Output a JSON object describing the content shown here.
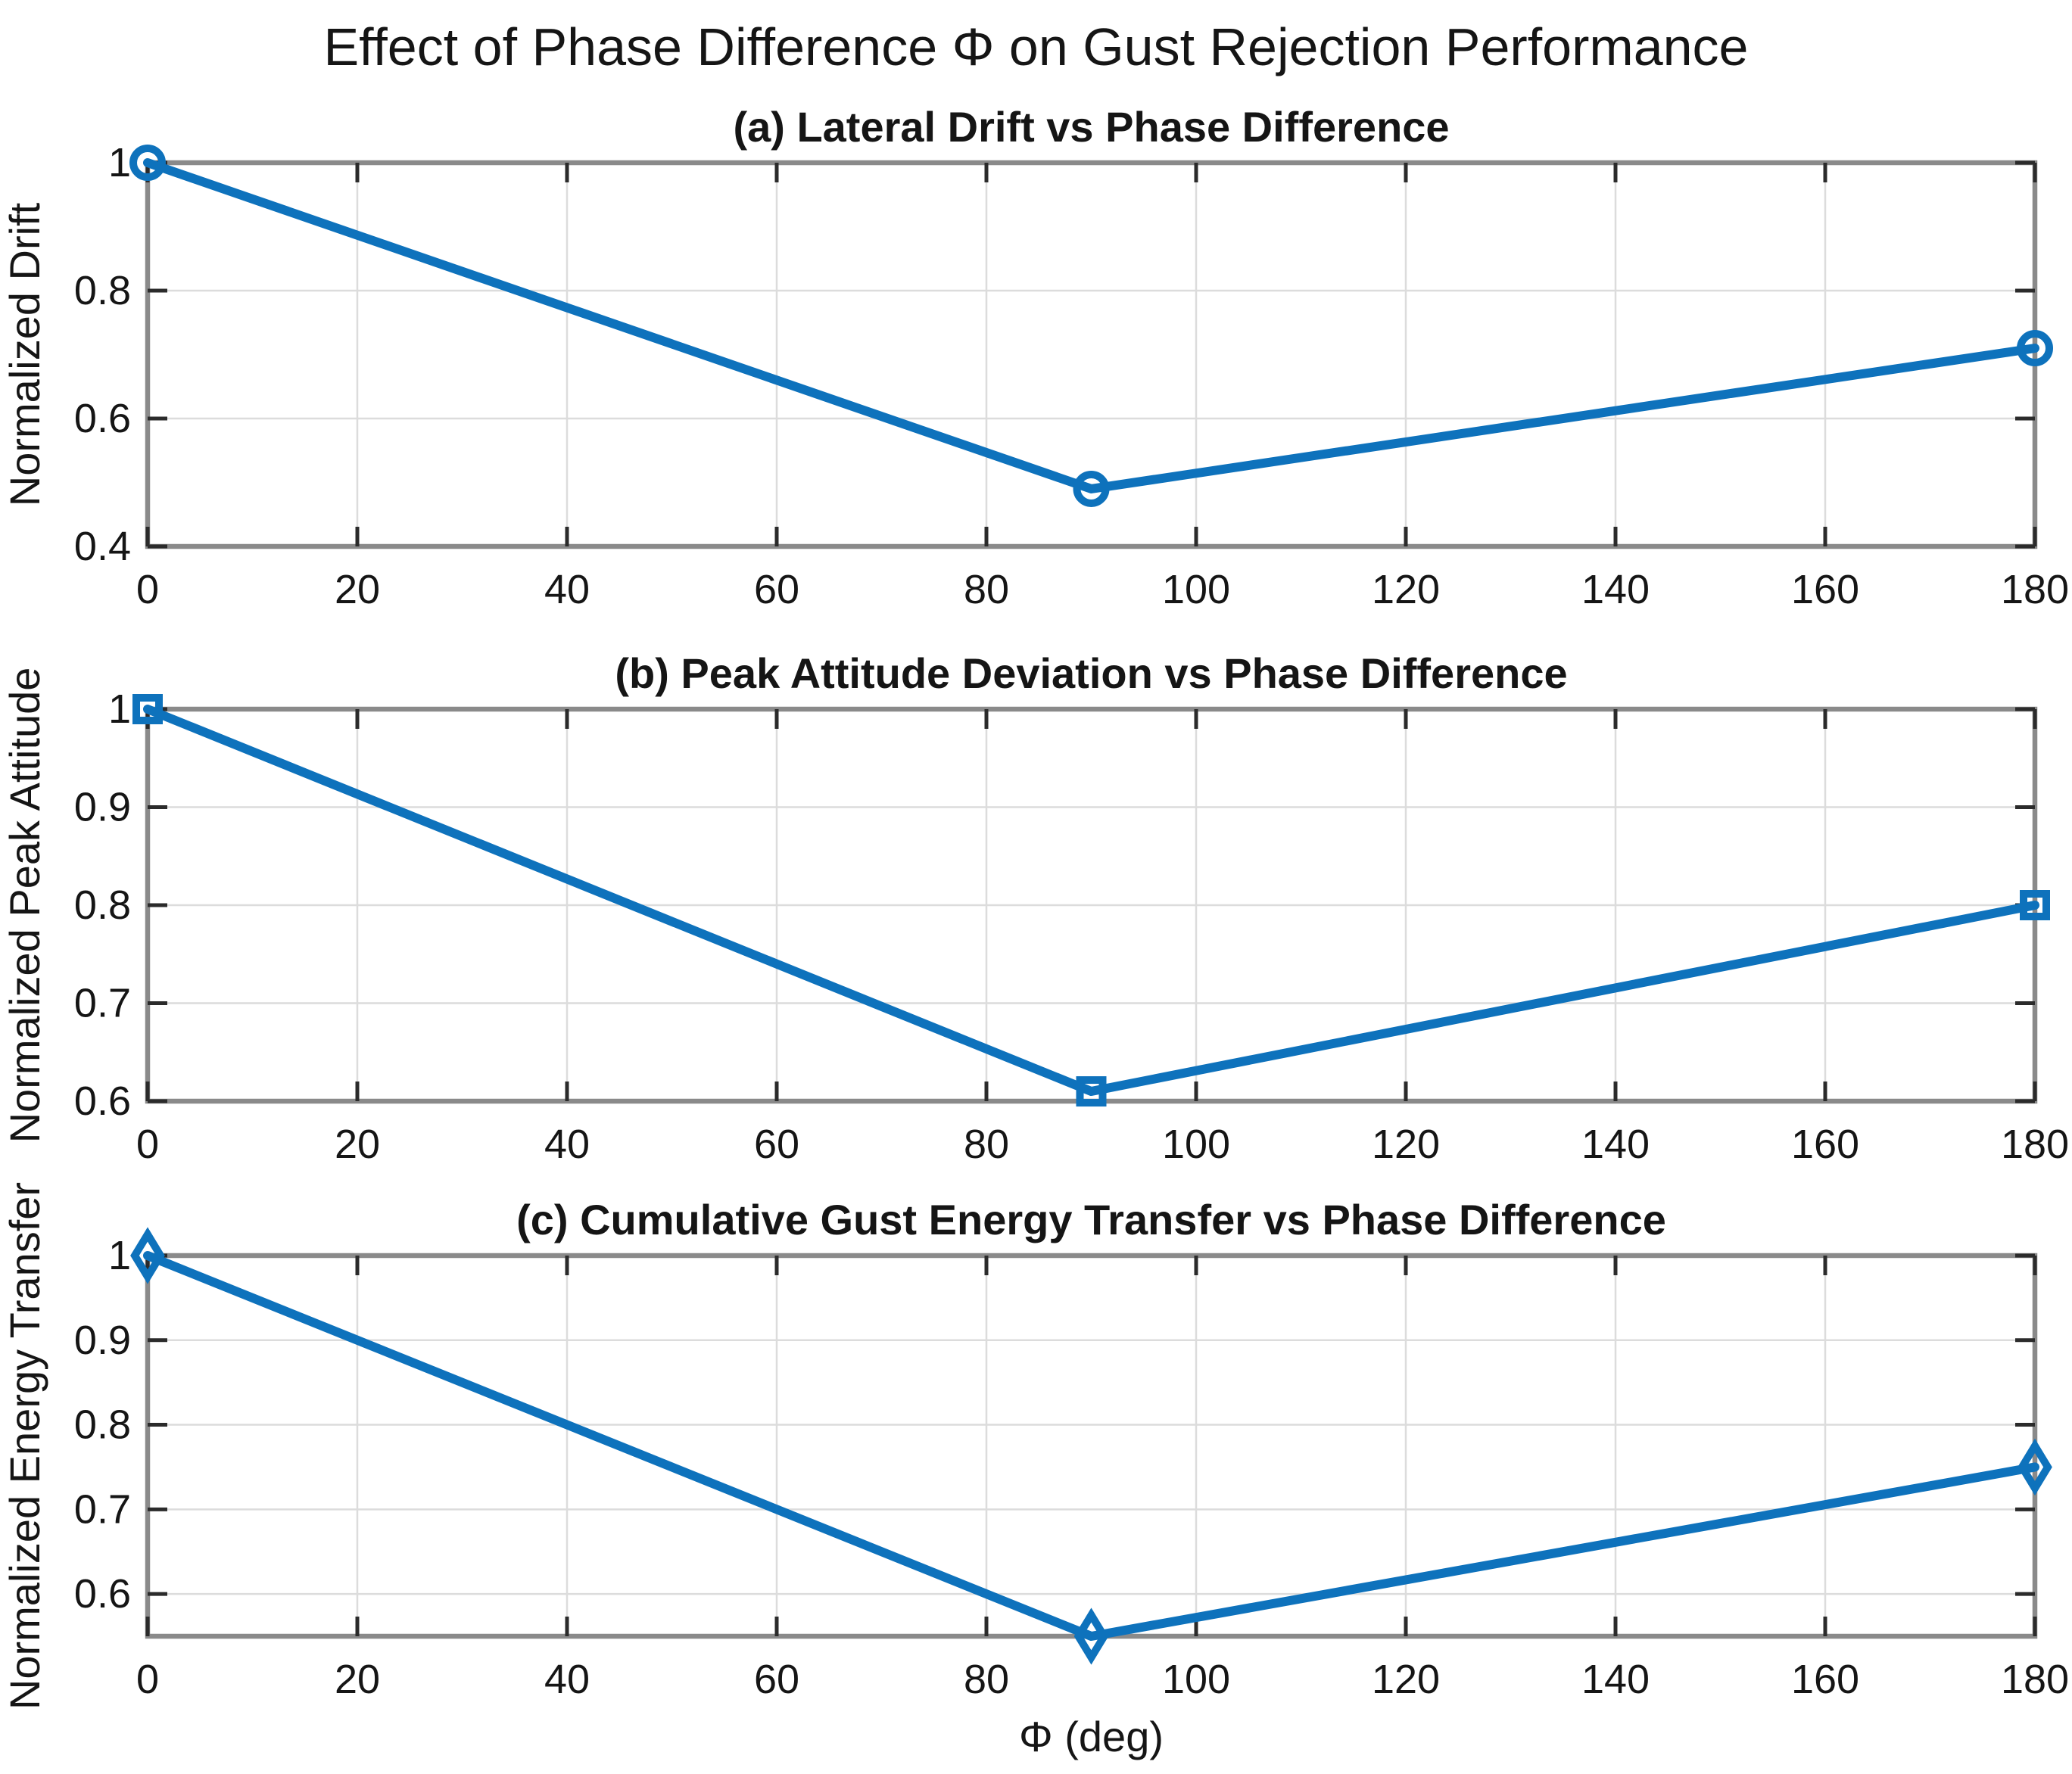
{
  "figure": {
    "title": "Effect of Phase Difference Φ on Gust Rejection Performance",
    "xlabel": "Φ (deg)",
    "background_color": "#ffffff",
    "line_color": "#0e72bc",
    "frame_color": "#8a8a8a",
    "tick_color": "#2b2b2b",
    "grid_color": "#dcdcdc",
    "text_color": "#151515"
  },
  "chart_data": [
    {
      "id": "a",
      "type": "line",
      "title": "(a) Lateral Drift vs Phase Difference",
      "ylabel": "Normalized Drift",
      "marker": "circle",
      "x": [
        0,
        90,
        180
      ],
      "y": [
        1.0,
        0.49,
        0.71
      ],
      "xlim": [
        0,
        180
      ],
      "ylim": [
        0.4,
        1.0
      ],
      "xticks": [
        0,
        20,
        40,
        60,
        80,
        100,
        120,
        140,
        160,
        180
      ],
      "xtick_labels": [
        "0",
        "20",
        "40",
        "60",
        "80",
        "100",
        "120",
        "140",
        "160",
        "180"
      ],
      "yticks": [
        0.4,
        0.6,
        0.8,
        1.0
      ],
      "ytick_labels": [
        "0.4",
        "0.6",
        "0.8",
        "1"
      ],
      "grid": true,
      "legend": "none",
      "color": "#0e72bc"
    },
    {
      "id": "b",
      "type": "line",
      "title": "(b) Peak Attitude Deviation vs Phase Difference",
      "ylabel": "Normalized Peak Attitude",
      "marker": "square",
      "x": [
        0,
        90,
        180
      ],
      "y": [
        1.0,
        0.61,
        0.8
      ],
      "xlim": [
        0,
        180
      ],
      "ylim": [
        0.6,
        1.0
      ],
      "xticks": [
        0,
        20,
        40,
        60,
        80,
        100,
        120,
        140,
        160,
        180
      ],
      "xtick_labels": [
        "0",
        "20",
        "40",
        "60",
        "80",
        "100",
        "120",
        "140",
        "160",
        "180"
      ],
      "yticks": [
        0.6,
        0.7,
        0.8,
        0.9,
        1.0
      ],
      "ytick_labels": [
        "0.6",
        "0.7",
        "0.8",
        "0.9",
        "1"
      ],
      "grid": true,
      "legend": "none",
      "color": "#0e72bc"
    },
    {
      "id": "c",
      "type": "line",
      "title": "(c) Cumulative Gust Energy Transfer vs Phase Difference",
      "ylabel": "Normalized Energy Transfer",
      "xlabel": "Φ (deg)",
      "marker": "diamond",
      "x": [
        0,
        90,
        180
      ],
      "y": [
        1.0,
        0.55,
        0.75
      ],
      "xlim": [
        0,
        180
      ],
      "ylim": [
        0.55,
        1.0
      ],
      "xticks": [
        0,
        20,
        40,
        60,
        80,
        100,
        120,
        140,
        160,
        180
      ],
      "xtick_labels": [
        "0",
        "20",
        "40",
        "60",
        "80",
        "100",
        "120",
        "140",
        "160",
        "180"
      ],
      "yticks": [
        0.6,
        0.7,
        0.8,
        0.9,
        1.0
      ],
      "ytick_labels": [
        "0.6",
        "0.7",
        "0.8",
        "0.9",
        "1"
      ],
      "grid": true,
      "legend": "none",
      "color": "#0e72bc"
    }
  ]
}
